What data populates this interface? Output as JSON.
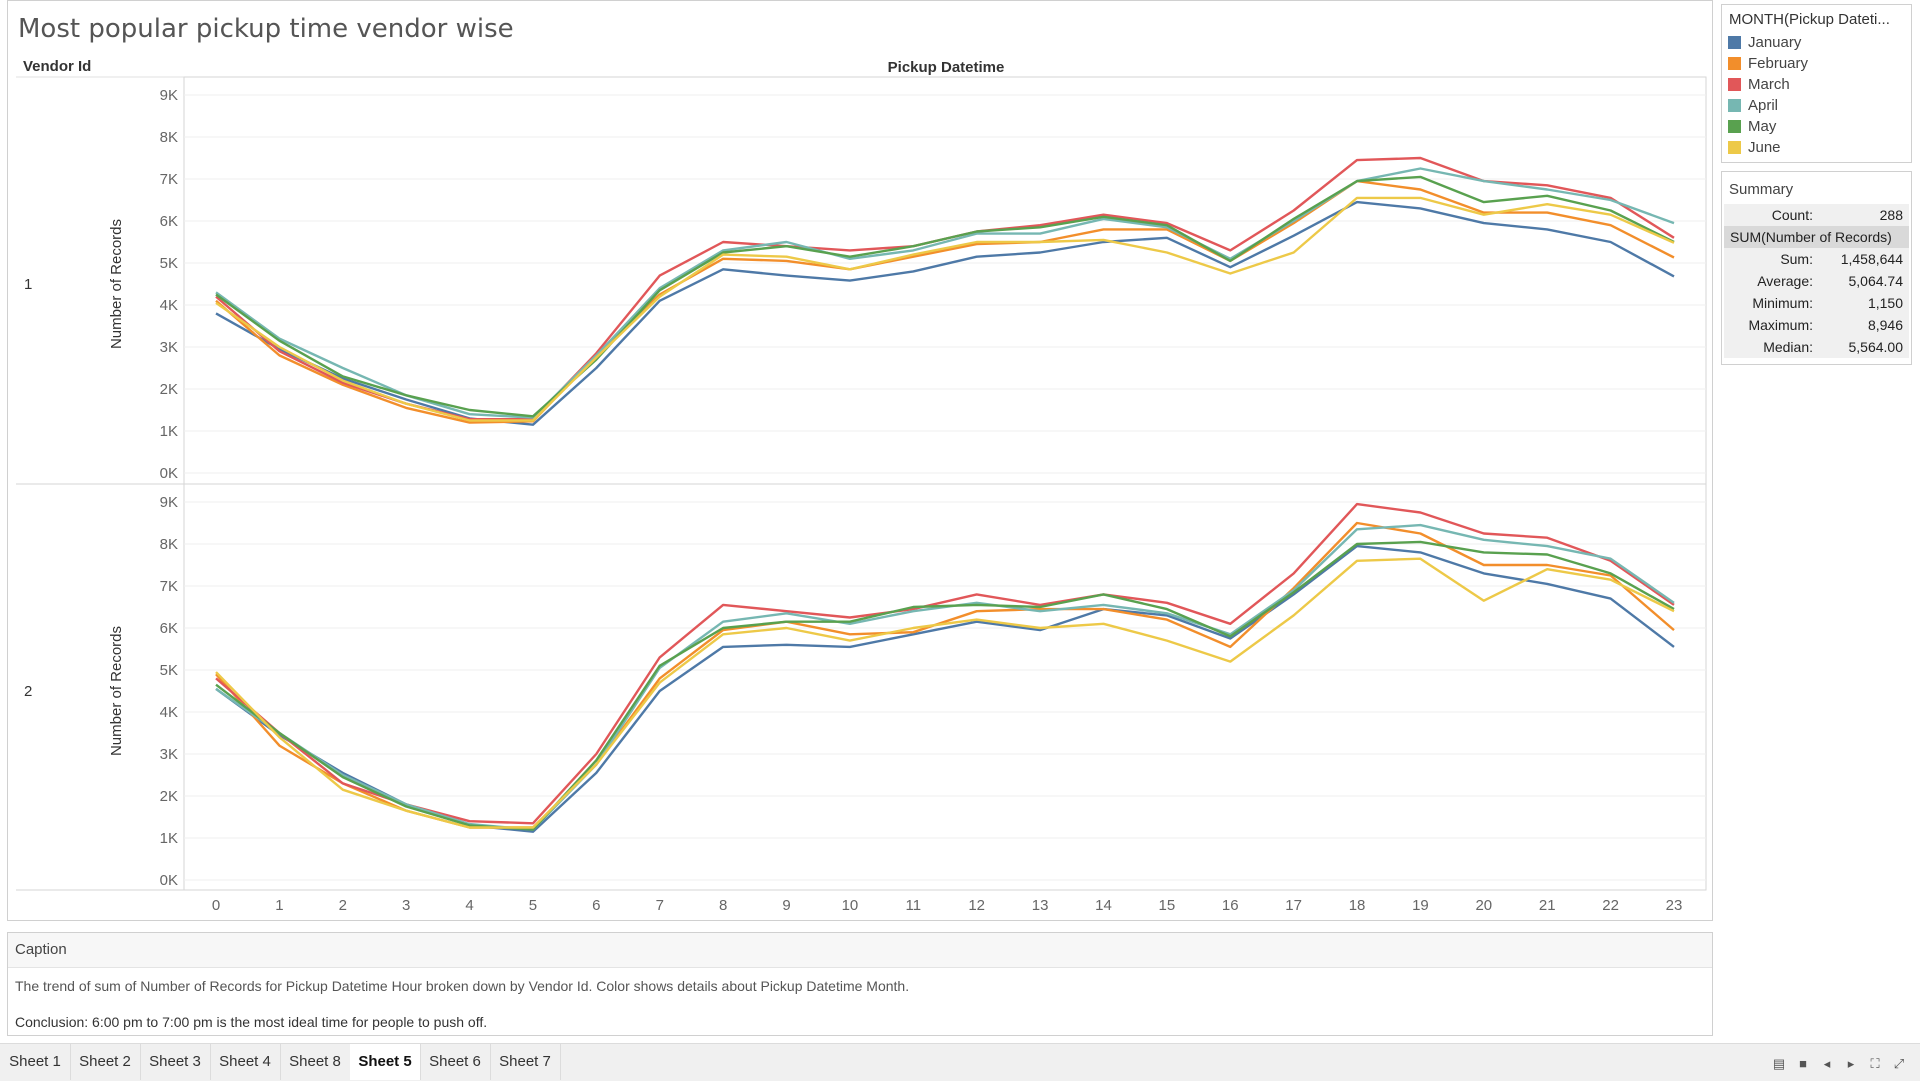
{
  "title": "Most popular pickup time vendor wise",
  "headers": {
    "row_field": "Vendor Id",
    "column_field": "Pickup Datetime"
  },
  "legend": {
    "title": "MONTH(Pickup Dateti...",
    "items": [
      {
        "label": "January",
        "color": "#4e79a7"
      },
      {
        "label": "February",
        "color": "#f28e2b"
      },
      {
        "label": "March",
        "color": "#e15759"
      },
      {
        "label": "April",
        "color": "#76b7b2"
      },
      {
        "label": "May",
        "color": "#59a14f"
      },
      {
        "label": "June",
        "color": "#edc948"
      }
    ]
  },
  "summary": {
    "title": "Summary",
    "count_label": "Count:",
    "count_value": "288",
    "measure_header": "SUM(Number of Records)",
    "rows": [
      {
        "label": "Sum:",
        "value": "1,458,644"
      },
      {
        "label": "Average:",
        "value": "5,064.74"
      },
      {
        "label": "Minimum:",
        "value": "1,150"
      },
      {
        "label": "Maximum:",
        "value": "8,946"
      },
      {
        "label": "Median:",
        "value": "5,564.00"
      }
    ]
  },
  "caption": {
    "title": "Caption",
    "text": "The trend of sum of Number of Records for Pickup Datetime Hour broken down by Vendor Id.  Color shows details about Pickup Datetime Month.",
    "conclusion": "Conclusion: 6:00 pm to 7:00 pm is the most ideal time for people to push off."
  },
  "tabs": [
    {
      "label": "Sheet 1",
      "active": false
    },
    {
      "label": "Sheet 2",
      "active": false
    },
    {
      "label": "Sheet 3",
      "active": false
    },
    {
      "label": "Sheet 4",
      "active": false
    },
    {
      "label": "Sheet 8",
      "active": false
    },
    {
      "label": "Sheet 5",
      "active": true
    },
    {
      "label": "Sheet 6",
      "active": false
    },
    {
      "label": "Sheet 7",
      "active": false
    }
  ],
  "chart_data": {
    "type": "line",
    "title": "Most popular pickup time vendor wise",
    "xlabel": "Pickup Datetime",
    "ylabel": "Number of Records",
    "x": [
      0,
      1,
      2,
      3,
      4,
      5,
      6,
      7,
      8,
      9,
      10,
      11,
      12,
      13,
      14,
      15,
      16,
      17,
      18,
      19,
      20,
      21,
      22,
      23
    ],
    "y_ticks": [
      "0K",
      "1K",
      "2K",
      "3K",
      "4K",
      "5K",
      "6K",
      "7K",
      "8K",
      "9K"
    ],
    "ylim": [
      0,
      9000
    ],
    "grid": true,
    "legend_position": "top-right",
    "panels": [
      {
        "vendor_id": "1",
        "series": [
          {
            "name": "January",
            "values": [
              3800,
              2950,
              2250,
              1750,
              1300,
              1150,
              2500,
              4100,
              4850,
              4700,
              4580,
              4800,
              5150,
              5250,
              5500,
              5600,
              4900,
              5650,
              6450,
              6300,
              5950,
              5800,
              5500,
              4680
            ]
          },
          {
            "name": "February",
            "values": [
              4100,
              2800,
              2100,
              1550,
              1200,
              1230,
              2800,
              4250,
              5100,
              5050,
              4850,
              5150,
              5450,
              5500,
              5800,
              5800,
              5050,
              5950,
              6950,
              6750,
              6200,
              6200,
              5900,
              5130
            ]
          },
          {
            "name": "March",
            "values": [
              4200,
              2900,
              2150,
              1650,
              1280,
              1280,
              2850,
              4700,
              5500,
              5400,
              5300,
              5400,
              5750,
              5900,
              6150,
              5950,
              5300,
              6250,
              7450,
              7500,
              6950,
              6850,
              6550,
              5600
            ]
          },
          {
            "name": "April",
            "values": [
              4300,
              3200,
              2500,
              1850,
              1400,
              1320,
              2800,
              4400,
              5300,
              5500,
              5100,
              5300,
              5700,
              5700,
              6050,
              5850,
              5100,
              6000,
              6950,
              7250,
              6950,
              6750,
              6500,
              5950
            ]
          },
          {
            "name": "May",
            "values": [
              4250,
              3150,
              2300,
              1850,
              1500,
              1350,
              2700,
              4350,
              5250,
              5400,
              5150,
              5400,
              5750,
              5850,
              6100,
              5900,
              5050,
              6050,
              6950,
              7050,
              6450,
              6600,
              6250,
              5500
            ]
          },
          {
            "name": "June",
            "values": [
              4050,
              3000,
              2200,
              1650,
              1250,
              1250,
              2750,
              4200,
              5200,
              5150,
              4850,
              5200,
              5500,
              5500,
              5550,
              5250,
              4750,
              5250,
              6550,
              6550,
              6150,
              6400,
              6150,
              5480
            ]
          }
        ]
      },
      {
        "vendor_id": "2",
        "series": [
          {
            "name": "January",
            "values": [
              4550,
              3450,
              2550,
              1800,
              1300,
              1150,
              2550,
              4500,
              5550,
              5600,
              5550,
              5850,
              6150,
              5950,
              6450,
              6300,
              5750,
              6800,
              7950,
              7800,
              7300,
              7050,
              6700,
              5550
            ]
          },
          {
            "name": "February",
            "values": [
              4900,
              3200,
              2300,
              1650,
              1250,
              1250,
              2750,
              4800,
              5950,
              6150,
              5850,
              5900,
              6400,
              6450,
              6450,
              6200,
              5550,
              6950,
              8500,
              8250,
              7500,
              7500,
              7250,
              5950
            ]
          },
          {
            "name": "March",
            "values": [
              4800,
              3500,
              2300,
              1800,
              1400,
              1350,
              3000,
              5300,
              6550,
              6400,
              6250,
              6450,
              6800,
              6550,
              6800,
              6600,
              6100,
              7300,
              8950,
              8750,
              8250,
              8150,
              7600,
              6550
            ]
          },
          {
            "name": "April",
            "values": [
              4550,
              3500,
              2500,
              1800,
              1330,
              1200,
              2750,
              5050,
              6150,
              6350,
              6100,
              6400,
              6600,
              6400,
              6550,
              6350,
              5850,
              6900,
              8350,
              8450,
              8100,
              7950,
              7650,
              6600
            ]
          },
          {
            "name": "May",
            "values": [
              4650,
              3500,
              2450,
              1750,
              1300,
              1200,
              2850,
              5100,
              6000,
              6150,
              6150,
              6500,
              6550,
              6500,
              6800,
              6450,
              5800,
              6850,
              8000,
              8050,
              7800,
              7750,
              7300,
              6450
            ]
          },
          {
            "name": "June",
            "values": [
              4950,
              3400,
              2150,
              1650,
              1250,
              1250,
              2750,
              4700,
              5850,
              6000,
              5700,
              6000,
              6200,
              6000,
              6100,
              5700,
              5200,
              6300,
              7600,
              7650,
              6650,
              7400,
              7150,
              6400
            ]
          }
        ]
      }
    ]
  }
}
